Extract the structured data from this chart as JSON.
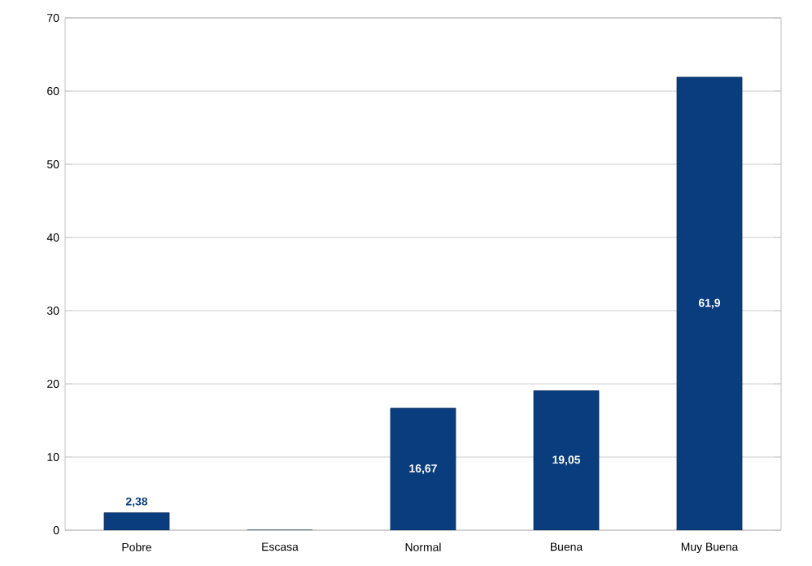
{
  "chart_data": {
    "type": "bar",
    "categories": [
      "Pobre",
      "Escasa",
      "Normal",
      "Buena",
      "Muy Buena"
    ],
    "values": [
      2.38,
      0,
      16.67,
      19.05,
      61.9
    ],
    "value_labels": [
      "2,38",
      null,
      "16,67",
      "19,05",
      "61,9"
    ],
    "color": "#0a3d7d",
    "ylim": [
      0,
      70
    ],
    "yticks": [
      0,
      10,
      20,
      30,
      40,
      50,
      60,
      70
    ],
    "grid": "y"
  }
}
